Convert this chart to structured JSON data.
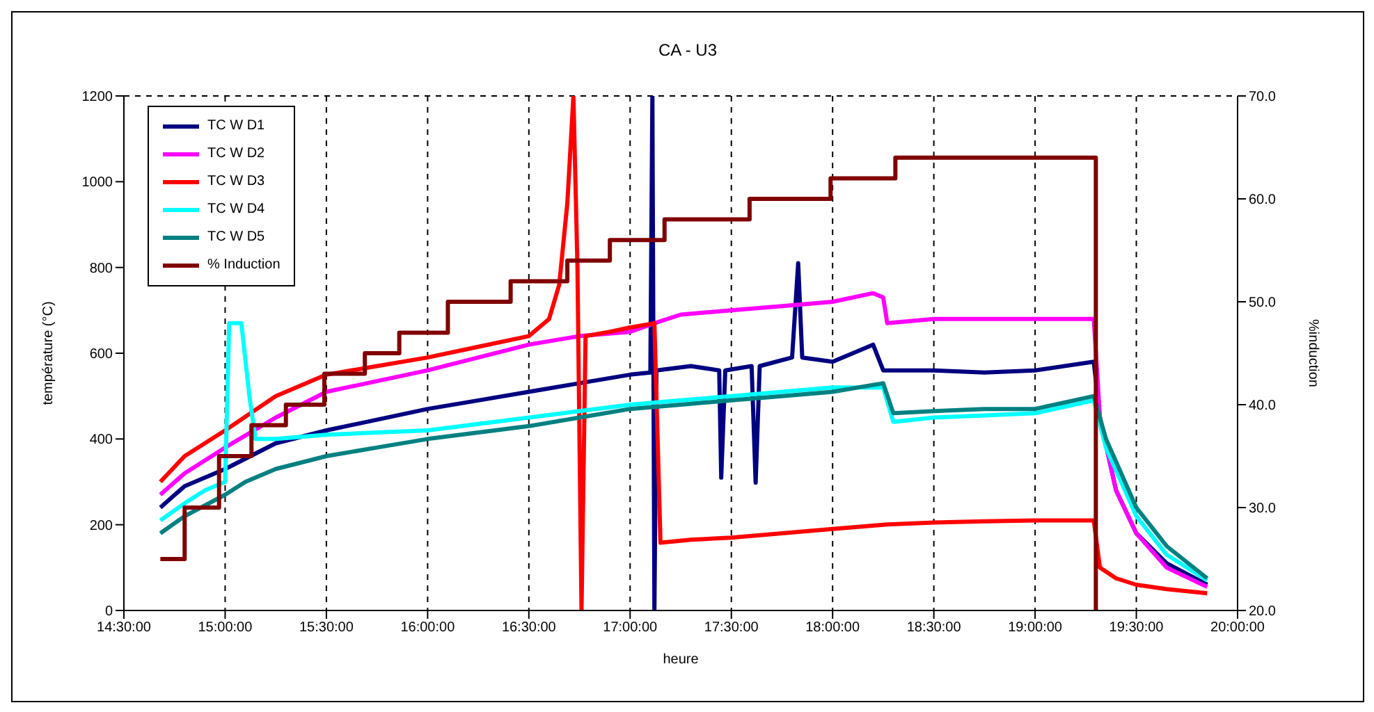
{
  "chart_data": {
    "type": "line",
    "title": "CA - U3",
    "xlabel": "heure",
    "ylabel": "température (°C)",
    "y2label": "%induction",
    "xlim": [
      14.5,
      20
    ],
    "xticks": [
      {
        "value": 14.5,
        "label": "14:30:00"
      },
      {
        "value": 15,
        "label": "15:00:00"
      },
      {
        "value": 15.5,
        "label": "15:30:00"
      },
      {
        "value": 16,
        "label": "16:00:00"
      },
      {
        "value": 16.5,
        "label": "16:30:00"
      },
      {
        "value": 17,
        "label": "17:00:00"
      },
      {
        "value": 17.5,
        "label": "17:30:00"
      },
      {
        "value": 18,
        "label": "18:00:00"
      },
      {
        "value": 18.5,
        "label": "18:30:00"
      },
      {
        "value": 19,
        "label": "19:00:00"
      },
      {
        "value": 19.5,
        "label": "19:30:00"
      },
      {
        "value": 20,
        "label": "20:00:00"
      }
    ],
    "ylim": [
      0,
      1200
    ],
    "yticks": [
      0,
      200,
      400,
      600,
      800,
      1000,
      1200
    ],
    "y2lim": [
      20,
      70
    ],
    "y2ticks": [
      {
        "value": 20,
        "label": "20.0"
      },
      {
        "value": 30,
        "label": "30.0"
      },
      {
        "value": 40,
        "label": "40.0"
      },
      {
        "value": 50,
        "label": "50.0"
      },
      {
        "value": 60,
        "label": "60.0"
      },
      {
        "value": 70,
        "label": "70.0"
      }
    ],
    "grid": true,
    "legend": "top left",
    "marker": "none",
    "line_style": "solid",
    "series": [
      {
        "name": "TC W D1",
        "color": "#000080",
        "x": [
          14.68,
          14.8,
          15.0,
          15.25,
          15.5,
          15.75,
          16.0,
          16.25,
          16.5,
          16.75,
          17.0,
          17.1,
          17.11,
          17.12,
          17.13,
          17.3,
          17.44,
          17.45,
          17.47,
          17.6,
          17.62,
          17.64,
          17.8,
          17.83,
          17.85,
          18.0,
          18.2,
          18.25,
          18.5,
          18.75,
          19.0,
          19.29,
          19.32,
          19.4,
          19.5,
          19.65,
          19.85
        ],
        "values": [
          240,
          290,
          330,
          390,
          420,
          445,
          470,
          490,
          510,
          530,
          550,
          555,
          1200,
          0,
          560,
          570,
          560,
          310,
          560,
          570,
          298,
          570,
          590,
          810,
          590,
          580,
          620,
          560,
          560,
          555,
          560,
          580,
          450,
          280,
          180,
          110,
          60
        ]
      },
      {
        "name": "TC W D2",
        "color": "#ff00ff",
        "x": [
          14.68,
          14.8,
          15.0,
          15.25,
          15.5,
          15.75,
          16.0,
          16.25,
          16.5,
          16.75,
          17.0,
          17.12,
          17.25,
          17.5,
          17.75,
          18.0,
          18.2,
          18.25,
          18.27,
          18.5,
          18.75,
          19.0,
          19.29,
          19.32,
          19.4,
          19.5,
          19.65,
          19.85
        ],
        "values": [
          270,
          320,
          380,
          450,
          510,
          535,
          560,
          590,
          620,
          640,
          650,
          670,
          690,
          700,
          710,
          720,
          740,
          730,
          670,
          680,
          680,
          680,
          680,
          450,
          280,
          180,
          100,
          55
        ]
      },
      {
        "name": "TC W D3",
        "color": "#ff0000",
        "x": [
          14.68,
          14.8,
          15.0,
          15.25,
          15.5,
          15.75,
          16.0,
          16.25,
          16.5,
          16.6,
          16.65,
          16.69,
          16.72,
          16.74,
          16.76,
          16.78,
          16.9,
          17.0,
          17.12,
          17.15,
          17.3,
          17.5,
          17.75,
          18.0,
          18.25,
          18.5,
          18.75,
          19.0,
          19.29,
          19.32,
          19.4,
          19.5,
          19.65,
          19.85
        ],
        "values": [
          300,
          360,
          420,
          500,
          550,
          570,
          590,
          615,
          640,
          680,
          760,
          950,
          1200,
          800,
          0,
          640,
          650,
          660,
          670,
          158,
          165,
          170,
          180,
          190,
          200,
          205,
          208,
          210,
          210,
          100,
          75,
          60,
          50,
          40
        ]
      },
      {
        "name": "TC W D4",
        "color": "#00ffff",
        "x": [
          14.68,
          14.8,
          14.9,
          15.0,
          15.02,
          15.08,
          15.12,
          15.15,
          15.25,
          15.5,
          15.75,
          16.0,
          16.25,
          16.5,
          16.75,
          17.0,
          17.25,
          17.5,
          17.75,
          18.0,
          18.25,
          18.3,
          18.5,
          18.75,
          19.0,
          19.29,
          19.35,
          19.5,
          19.65,
          19.85
        ],
        "values": [
          210,
          250,
          280,
          300,
          670,
          670,
          500,
          400,
          400,
          410,
          415,
          420,
          435,
          450,
          465,
          480,
          490,
          500,
          510,
          520,
          520,
          440,
          450,
          455,
          460,
          490,
          380,
          220,
          130,
          70
        ]
      },
      {
        "name": "TC W D5",
        "color": "#008080",
        "x": [
          14.68,
          14.8,
          15.0,
          15.1,
          15.25,
          15.5,
          15.75,
          16.0,
          16.25,
          16.5,
          16.75,
          17.0,
          17.25,
          17.5,
          17.75,
          18.0,
          18.25,
          18.3,
          18.5,
          18.75,
          19.0,
          19.29,
          19.35,
          19.5,
          19.65,
          19.85
        ],
        "values": [
          180,
          220,
          270,
          300,
          330,
          360,
          380,
          400,
          415,
          430,
          450,
          470,
          480,
          490,
          500,
          510,
          530,
          460,
          465,
          470,
          470,
          500,
          400,
          240,
          150,
          75
        ]
      },
      {
        "name": "% Induction",
        "type": "step",
        "axis": "y2",
        "color": "#800000",
        "x": [
          14.68,
          14.8,
          14.97,
          15.13,
          15.3,
          15.49,
          15.69,
          15.86,
          16.1,
          16.41,
          16.69,
          16.9,
          17.17,
          17.59,
          17.99,
          18.31,
          19.3
        ],
        "values": [
          25,
          30,
          35,
          38,
          40,
          43,
          45,
          47,
          50,
          52,
          54,
          56,
          58,
          60,
          62,
          64,
          20
        ]
      }
    ]
  }
}
